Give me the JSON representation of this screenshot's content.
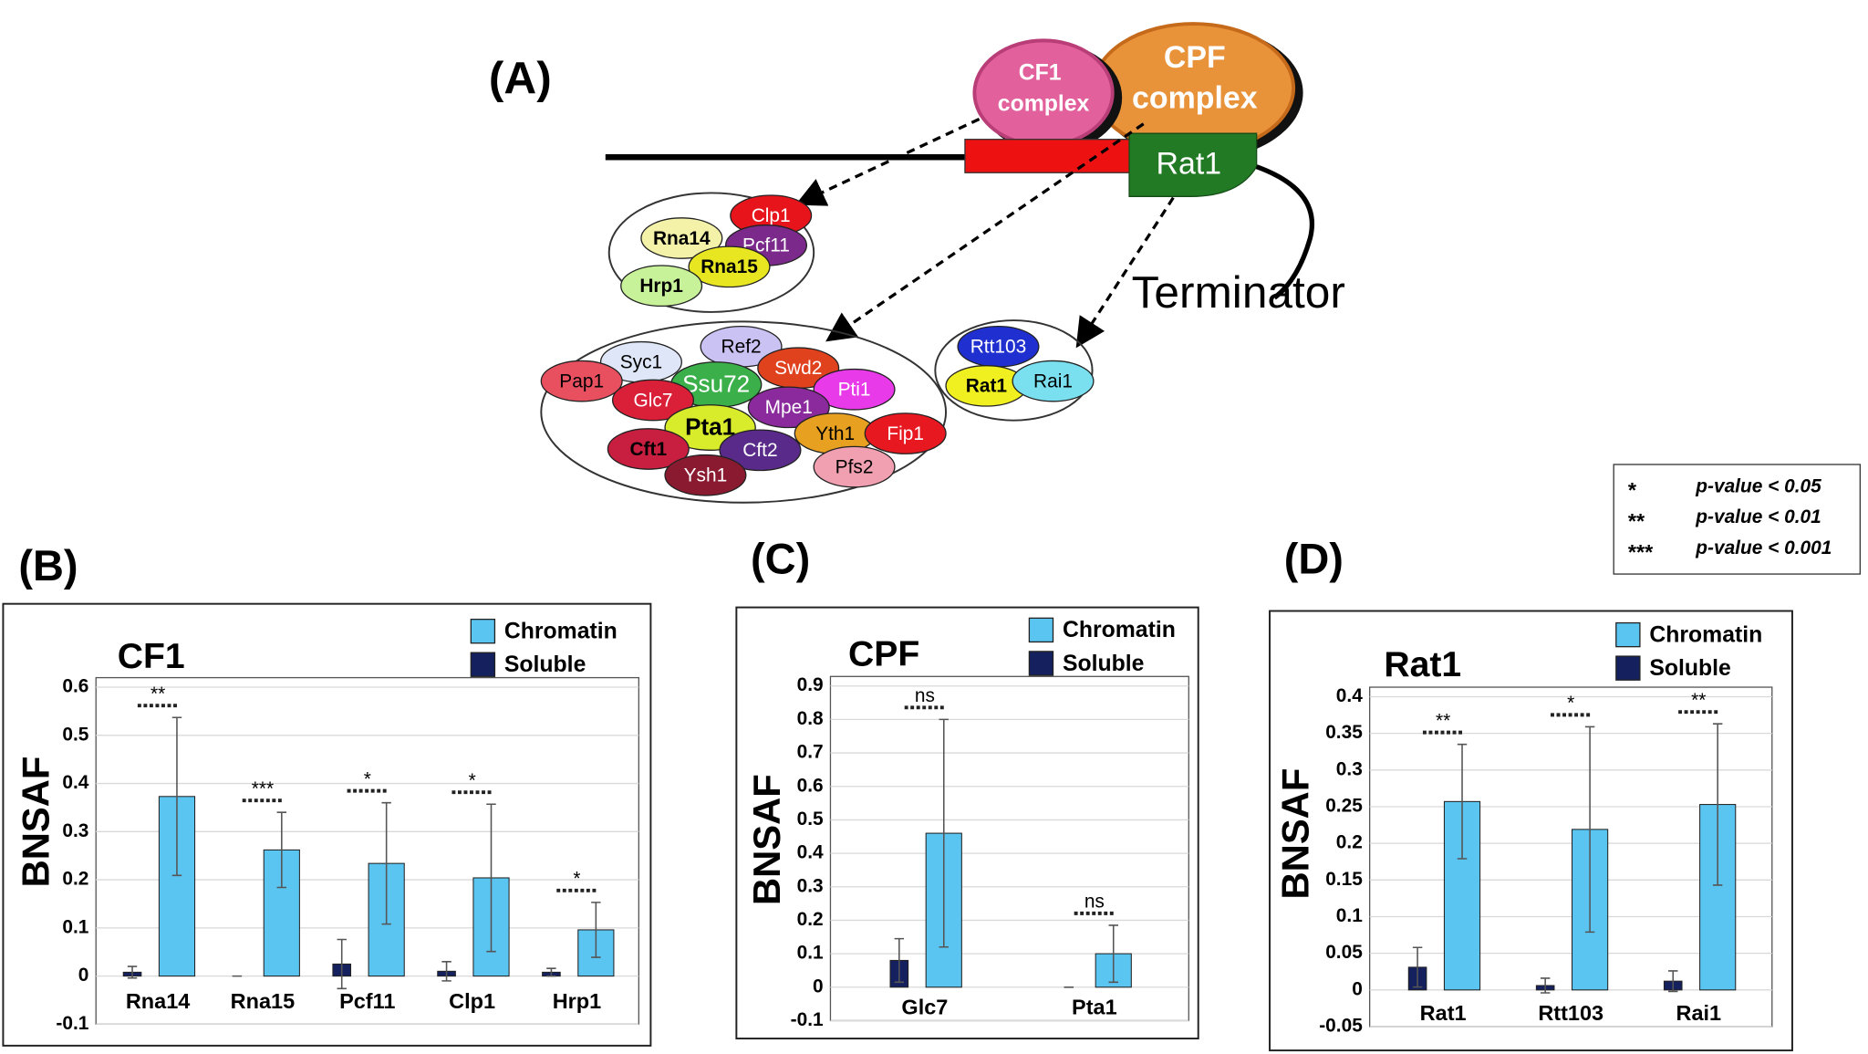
{
  "diagram": {
    "panel": "(A)",
    "cf1": [
      "CF1",
      "complex"
    ],
    "cpf": [
      "CPF",
      "complex"
    ],
    "rat1": "Rat1",
    "terminator": "Terminator",
    "cf1_members": [
      "Clp1",
      "Rna14",
      "Pcf11",
      "Rna15",
      "Hrp1"
    ],
    "cpf_members": [
      "Ref2",
      "Syc1",
      "Pap1",
      "Swd2",
      "Ssu72",
      "Pti1",
      "Glc7",
      "Mpe1",
      "Pta1",
      "Yth1",
      "Fip1",
      "Cft1",
      "Cft2",
      "Pfs2",
      "Ysh1"
    ],
    "rat1_members": [
      "Rtt103",
      "Rat1",
      "Rai1"
    ]
  },
  "significance_legend": [
    {
      "symbol": "*",
      "text": "p-value < 0.05"
    },
    {
      "symbol": "**",
      "text": "p-value < 0.01"
    },
    {
      "symbol": "***",
      "text": "p-value < 0.001"
    }
  ],
  "chart_data": [
    {
      "type": "bar",
      "panel": "(B)",
      "title": "CF1",
      "ylabel": "BNSAF",
      "categories": [
        "Rna14",
        "Rna15",
        "Pcf11",
        "Clp1",
        "Hrp1"
      ],
      "series": [
        {
          "name": "Chromatin",
          "color": "#5bc5f2",
          "values": [
            0.373,
            0.262,
            0.234,
            0.204,
            0.096
          ],
          "errors": [
            0.164,
            0.078,
            0.126,
            0.153,
            0.057
          ]
        },
        {
          "name": "Soluble",
          "color": "#14215e",
          "values": [
            0.008,
            0,
            0.025,
            0.01,
            0.008
          ],
          "errors": [
            0.012,
            0,
            0.051,
            0.02,
            0.008
          ]
        }
      ],
      "annotations": [
        "**",
        "***",
        "*",
        "*",
        "*"
      ],
      "ylim": [
        -0.1,
        0.6
      ],
      "yticks": [
        -0.1,
        0,
        0.1,
        0.2,
        0.3,
        0.4,
        0.5,
        0.6
      ],
      "grid": true
    },
    {
      "type": "bar",
      "panel": "(C)",
      "title": "CPF",
      "ylabel": "BNSAF",
      "categories": [
        "Glc7",
        "Pta1"
      ],
      "series": [
        {
          "name": "Chromatin",
          "color": "#5bc5f2",
          "values": [
            0.46,
            0.1
          ],
          "errors": [
            0.34,
            0.085
          ]
        },
        {
          "name": "Soluble",
          "color": "#14215e",
          "values": [
            0.08,
            0
          ],
          "errors": [
            0.065,
            0
          ]
        }
      ],
      "annotations": [
        "ns",
        "ns"
      ],
      "ylim": [
        -0.1,
        0.9
      ],
      "yticks": [
        -0.1,
        0,
        0.1,
        0.2,
        0.3,
        0.4,
        0.5,
        0.6,
        0.7,
        0.8,
        0.9
      ],
      "grid": true
    },
    {
      "type": "bar",
      "panel": "(D)",
      "title": "Rat1",
      "ylabel": "BNSAF",
      "categories": [
        "Rat1",
        "Rtt103",
        "Rai1"
      ],
      "series": [
        {
          "name": "Chromatin",
          "color": "#5bc5f2",
          "values": [
            0.257,
            0.219,
            0.253
          ],
          "errors": [
            0.078,
            0.14,
            0.11
          ]
        },
        {
          "name": "Soluble",
          "color": "#14215e",
          "values": [
            0.031,
            0.006,
            0.012
          ],
          "errors": [
            0.027,
            0.01,
            0.014
          ]
        }
      ],
      "annotations": [
        "**",
        "*",
        "**"
      ],
      "ylim": [
        -0.05,
        0.4
      ],
      "yticks": [
        -0.05,
        0,
        0.05,
        0.1,
        0.15,
        0.2,
        0.25,
        0.3,
        0.35,
        0.4
      ],
      "grid": true
    }
  ]
}
